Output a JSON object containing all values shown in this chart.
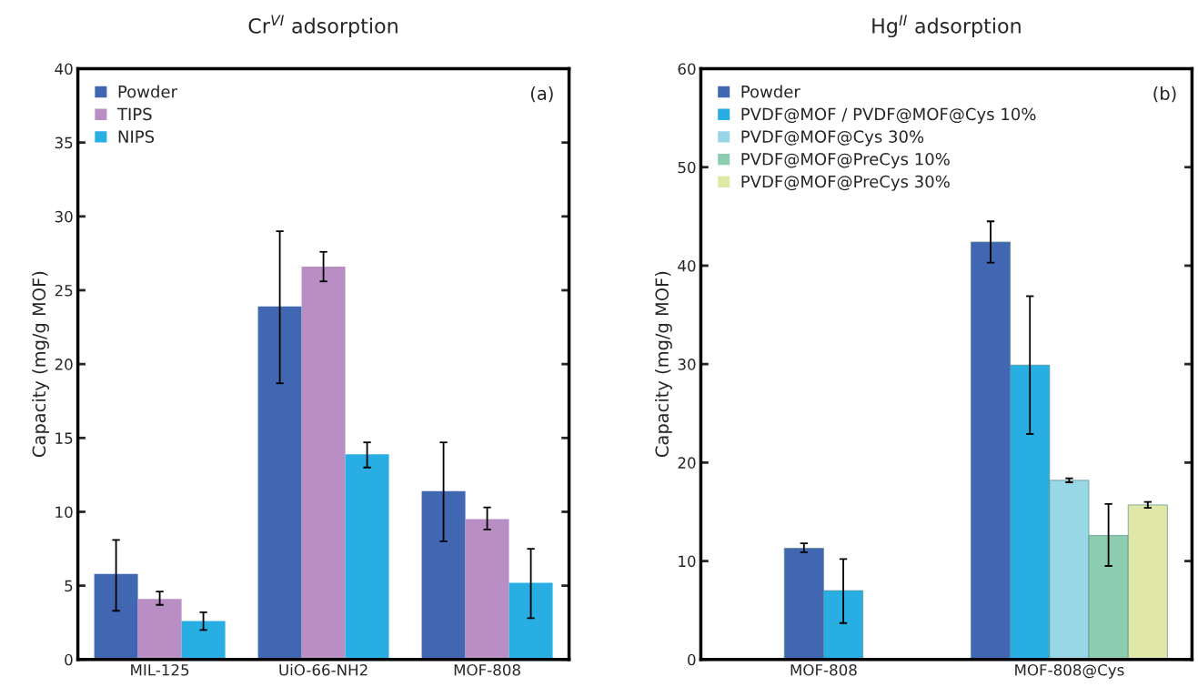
{
  "chart_data": [
    {
      "type": "bar",
      "title": "Cr$^{VI}$ adsorption",
      "ylabel": "Capacity (mg/g MOF)",
      "categories": [
        "MIL-125",
        "UiO-66-NH2",
        "MOF-808"
      ],
      "ylim": [
        0,
        40
      ],
      "yticks": [
        0,
        5,
        10,
        15,
        20,
        25,
        30,
        35,
        40
      ],
      "legend": "top left",
      "grid": false,
      "annotations": [
        "(a)"
      ],
      "series": [
        {
          "name": "Powder",
          "color": "#4267b2",
          "values": [
            5.8,
            23.9,
            11.4
          ],
          "errors": [
            [
              3.3,
              8.1
            ],
            [
              18.7,
              29.0
            ],
            [
              8.0,
              14.7
            ]
          ]
        },
        {
          "name": "TIPS",
          "color": "#b88ec4",
          "values": [
            4.1,
            26.6,
            9.5
          ],
          "errors": [
            [
              3.7,
              4.6
            ],
            [
              25.6,
              27.6
            ],
            [
              8.8,
              10.3
            ]
          ]
        },
        {
          "name": "NIPS",
          "color": "#29aee3",
          "values": [
            2.6,
            13.9,
            5.2
          ],
          "errors": [
            [
              2.0,
              3.2
            ],
            [
              13.0,
              14.7
            ],
            [
              2.8,
              7.5
            ]
          ]
        }
      ]
    },
    {
      "type": "bar",
      "title": "Hg$^{II}$ adsorption",
      "ylabel": "Capacity (mg/g MOF)",
      "categories": [
        "MOF-808",
        "MOF-808@Cys"
      ],
      "ylim": [
        0,
        60
      ],
      "yticks": [
        0,
        10,
        20,
        30,
        40,
        50,
        60
      ],
      "legend": "top left",
      "grid": false,
      "annotations": [
        "(b)"
      ],
      "series": [
        {
          "name": "Powder",
          "color": "#4267b2",
          "values": [
            11.3,
            42.4
          ],
          "errors": [
            [
              10.9,
              11.8
            ],
            [
              40.3,
              44.5
            ]
          ]
        },
        {
          "name": "PVDF@MOF / PVDF@MOF@Cys 10%",
          "color": "#29aee3",
          "values": [
            7.0,
            29.9
          ],
          "errors": [
            [
              3.7,
              10.2
            ],
            [
              22.9,
              36.9
            ]
          ]
        },
        {
          "name": "PVDF@MOF@Cys 30%",
          "color": "#98d8e6",
          "values": [
            null,
            18.2
          ],
          "errors": [
            null,
            [
              18.0,
              18.4
            ]
          ]
        },
        {
          "name": "PVDF@MOF@PreCys 10%",
          "color": "#8ccdb0",
          "values": [
            null,
            12.6
          ],
          "errors": [
            null,
            [
              9.5,
              15.8
            ]
          ]
        },
        {
          "name": "PVDF@MOF@PreCys 30%",
          "color": "#dfe8a6",
          "values": [
            null,
            15.7
          ],
          "errors": [
            null,
            [
              15.4,
              16.0
            ]
          ]
        }
      ]
    }
  ]
}
